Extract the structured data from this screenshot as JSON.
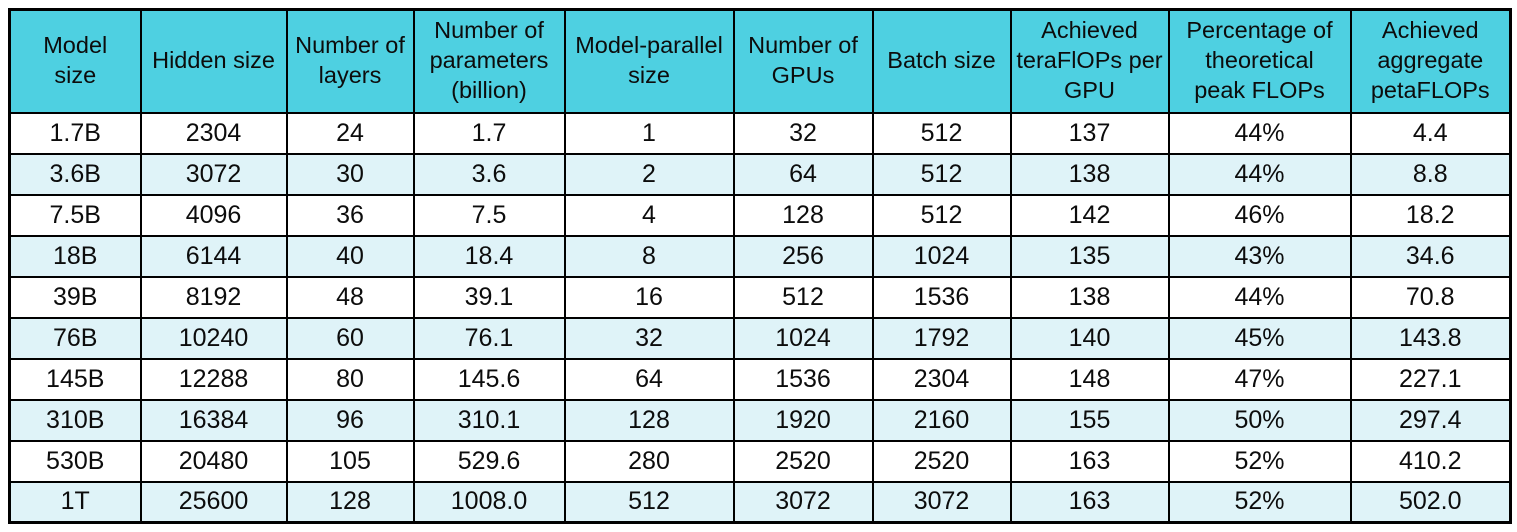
{
  "chart_data": {
    "type": "table",
    "columns": [
      "Model\nsize",
      "Hidden size",
      "Number of\nlayers",
      "Number of\nparameters\n(billion)",
      "Model-parallel\nsize",
      "Number of\nGPUs",
      "Batch size",
      "Achieved\nteraFlOPs per\nGPU",
      "Percentage of\ntheoretical\npeak FLOPs",
      "Achieved\naggregate\npetaFLOPs"
    ],
    "rows": [
      [
        "1.7B",
        "2304",
        "24",
        "1.7",
        "1",
        "32",
        "512",
        "137",
        "44%",
        "4.4"
      ],
      [
        "3.6B",
        "3072",
        "30",
        "3.6",
        "2",
        "64",
        "512",
        "138",
        "44%",
        "8.8"
      ],
      [
        "7.5B",
        "4096",
        "36",
        "7.5",
        "4",
        "128",
        "512",
        "142",
        "46%",
        "18.2"
      ],
      [
        "18B",
        "6144",
        "40",
        "18.4",
        "8",
        "256",
        "1024",
        "135",
        "43%",
        "34.6"
      ],
      [
        "39B",
        "8192",
        "48",
        "39.1",
        "16",
        "512",
        "1536",
        "138",
        "44%",
        "70.8"
      ],
      [
        "76B",
        "10240",
        "60",
        "76.1",
        "32",
        "1024",
        "1792",
        "140",
        "45%",
        "143.8"
      ],
      [
        "145B",
        "12288",
        "80",
        "145.6",
        "64",
        "1536",
        "2304",
        "148",
        "47%",
        "227.1"
      ],
      [
        "310B",
        "16384",
        "96",
        "310.1",
        "128",
        "1920",
        "2160",
        "155",
        "50%",
        "297.4"
      ],
      [
        "530B",
        "20480",
        "105",
        "529.6",
        "280",
        "2520",
        "2520",
        "163",
        "52%",
        "410.2"
      ],
      [
        "1T",
        "25600",
        "128",
        "1008.0",
        "512",
        "3072",
        "3072",
        "163",
        "52%",
        "502.0"
      ]
    ],
    "layout": {
      "header_bg": "#4ED0E1",
      "zebra_row_bg": "#DFF3F8",
      "plain_row_bg": "#FFFFFF",
      "border_color": "#000000",
      "grid": "on",
      "zebra_pattern": "even data rows shaded"
    }
  }
}
